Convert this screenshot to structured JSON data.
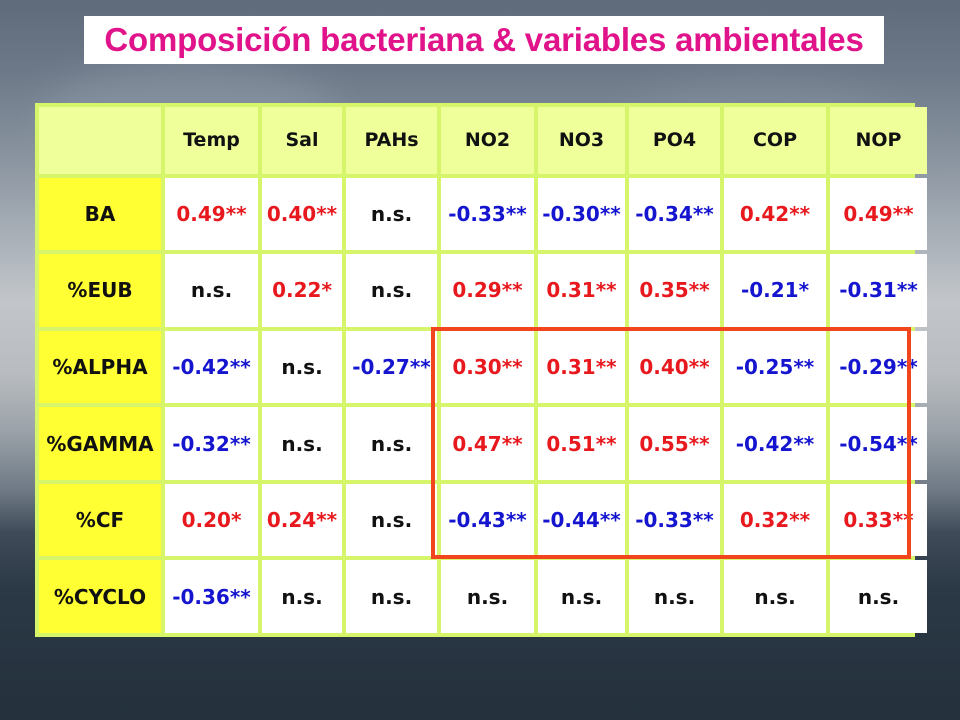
{
  "title": "Composición bacteriana & variables ambientales",
  "colors": {
    "title": "#e0138a",
    "positive": "#e8191e",
    "negative": "#1515d0",
    "non_significant": "#111111",
    "row_header_bg": "#ffff33",
    "column_header_bg": "#efff9a",
    "highlight_border": "#f0451d"
  },
  "table": {
    "columns": [
      "Temp",
      "Sal",
      "PAHs",
      "NO2",
      "NO3",
      "PO4",
      "COP",
      "NOP"
    ],
    "rows": [
      {
        "label": "BA",
        "cells": [
          {
            "text": "0.49**",
            "sign": "pos"
          },
          {
            "text": "0.40**",
            "sign": "pos"
          },
          {
            "text": "n.s.",
            "sign": "ns"
          },
          {
            "text": "-0.33**",
            "sign": "neg"
          },
          {
            "text": "-0.30**",
            "sign": "neg"
          },
          {
            "text": "-0.34**",
            "sign": "neg"
          },
          {
            "text": "0.42**",
            "sign": "pos"
          },
          {
            "text": "0.49**",
            "sign": "pos"
          }
        ]
      },
      {
        "label": "%EUB",
        "cells": [
          {
            "text": "n.s.",
            "sign": "ns"
          },
          {
            "text": "0.22*",
            "sign": "pos"
          },
          {
            "text": "n.s.",
            "sign": "ns"
          },
          {
            "text": "0.29**",
            "sign": "pos"
          },
          {
            "text": "0.31**",
            "sign": "pos"
          },
          {
            "text": "0.35**",
            "sign": "pos"
          },
          {
            "text": "-0.21*",
            "sign": "neg"
          },
          {
            "text": "-0.31**",
            "sign": "neg"
          }
        ]
      },
      {
        "label": "%ALPHA",
        "cells": [
          {
            "text": "-0.42**",
            "sign": "neg"
          },
          {
            "text": "n.s.",
            "sign": "ns"
          },
          {
            "text": "-0.27**",
            "sign": "neg"
          },
          {
            "text": "0.30**",
            "sign": "pos"
          },
          {
            "text": "0.31**",
            "sign": "pos"
          },
          {
            "text": "0.40**",
            "sign": "pos"
          },
          {
            "text": "-0.25**",
            "sign": "neg"
          },
          {
            "text": "-0.29**",
            "sign": "neg"
          }
        ]
      },
      {
        "label": "%GAMMA",
        "cells": [
          {
            "text": "-0.32**",
            "sign": "neg"
          },
          {
            "text": "n.s.",
            "sign": "ns"
          },
          {
            "text": "n.s.",
            "sign": "ns"
          },
          {
            "text": "0.47**",
            "sign": "pos"
          },
          {
            "text": "0.51**",
            "sign": "pos"
          },
          {
            "text": "0.55**",
            "sign": "pos"
          },
          {
            "text": "-0.42**",
            "sign": "neg"
          },
          {
            "text": "-0.54**",
            "sign": "neg"
          }
        ]
      },
      {
        "label": "%CF",
        "cells": [
          {
            "text": "0.20*",
            "sign": "pos"
          },
          {
            "text": "0.24**",
            "sign": "pos"
          },
          {
            "text": "n.s.",
            "sign": "ns"
          },
          {
            "text": "-0.43**",
            "sign": "neg"
          },
          {
            "text": "-0.44**",
            "sign": "neg"
          },
          {
            "text": "-0.33**",
            "sign": "neg"
          },
          {
            "text": "0.32**",
            "sign": "pos"
          },
          {
            "text": "0.33**",
            "sign": "pos"
          }
        ]
      },
      {
        "label": "%CYCLO",
        "cells": [
          {
            "text": "-0.36**",
            "sign": "neg"
          },
          {
            "text": "n.s.",
            "sign": "ns"
          },
          {
            "text": "n.s.",
            "sign": "ns"
          },
          {
            "text": "n.s.",
            "sign": "ns"
          },
          {
            "text": "n.s.",
            "sign": "ns"
          },
          {
            "text": "n.s.",
            "sign": "ns"
          },
          {
            "text": "n.s.",
            "sign": "ns"
          },
          {
            "text": "n.s.",
            "sign": "ns"
          }
        ]
      }
    ]
  }
}
